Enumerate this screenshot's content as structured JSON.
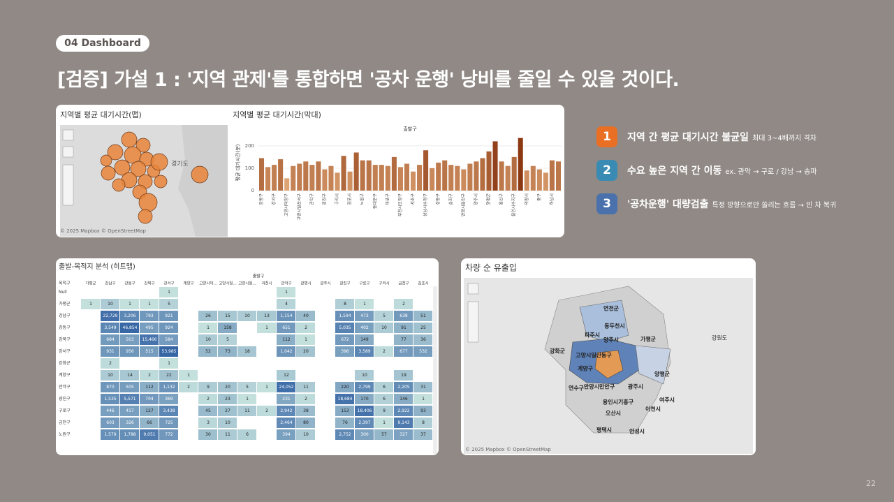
{
  "header": {
    "tag": "04 Dashboard",
    "title": "[검증] 가설 1 : '지역 관제'를 통합하면 '공차 운행' 낭비를 줄일 수 있을 것이다."
  },
  "map1": {
    "title": "지역별 평균 대기시간(맵)",
    "label": "경기도",
    "credit": "© 2025 Mapbox © OpenStreetMap"
  },
  "chart_data": {
    "type": "bar",
    "title": "지역별 평균 대기시간(막대)",
    "x_label": "출발구",
    "y_label": "평균 대기시간(분)",
    "categories": [
      "강동구",
      null,
      "강서구",
      null,
      "고양시덕양구",
      null,
      "고양시일산서구",
      null,
      "관악구",
      null,
      "광진구",
      null,
      "구리시",
      null,
      "김포시",
      null,
      "노원구",
      null,
      "동대문구",
      null,
      "마포구",
      null,
      "부천시오정구",
      null,
      "서초구",
      null,
      "성남시수정구",
      null,
      "성동구",
      null,
      "송파구",
      null,
      "안양시동안구",
      null,
      "양주시",
      null,
      "양평군",
      null,
      "용산구",
      null,
      "용인시수지구",
      null,
      "의왕시",
      null,
      "중구",
      null,
      "하남시",
      null
    ],
    "values": [
      145,
      105,
      115,
      140,
      55,
      110,
      120,
      130,
      115,
      130,
      95,
      110,
      80,
      155,
      85,
      170,
      135,
      135,
      115,
      115,
      110,
      150,
      105,
      120,
      85,
      115,
      180,
      100,
      125,
      135,
      115,
      110,
      95,
      120,
      130,
      145,
      175,
      220,
      130,
      110,
      150,
      235,
      90,
      110,
      95,
      80,
      135,
      130
    ],
    "colorscale": [
      "#f6c48f",
      "#8a3510"
    ],
    "ylim": [
      0,
      240
    ],
    "yticks": [
      0,
      100,
      200
    ]
  },
  "heatmap": {
    "title": "출발-목적지 분석 (히트맵)",
    "col_title": "출발구",
    "row_title": "목적구",
    "columns": [
      "가평군",
      "강남구",
      "강동구",
      "강북구",
      "강서구",
      "계양구",
      "고양시덕...",
      "고양시일...",
      "고양시일...",
      "과천시",
      "관악구",
      "광명시",
      "광주시",
      "광진구",
      "구로구",
      "구리시",
      "금천구",
      "김포시"
    ],
    "rows": [
      {
        "name": "Null",
        "cells": [
          null,
          null,
          null,
          null,
          "1",
          null,
          null,
          null,
          null,
          null,
          "1",
          null,
          null,
          null,
          null,
          null,
          null,
          null
        ]
      },
      {
        "name": "가평군",
        "cells": [
          "1",
          "10",
          "1",
          "1",
          "5",
          null,
          null,
          null,
          null,
          null,
          "4",
          null,
          null,
          "8",
          "1",
          null,
          "2",
          null
        ]
      },
      {
        "name": "강남구",
        "cells": [
          null,
          "22,729",
          "3,206",
          "793",
          "921",
          null,
          "26",
          "15",
          "10",
          "13",
          "1,154",
          "40",
          null,
          "1,594",
          "473",
          "5",
          "638",
          "51"
        ]
      },
      {
        "name": "강동구",
        "cells": [
          null,
          "3,549",
          "46,854",
          "495",
          "924",
          null,
          "1",
          "158",
          null,
          "1",
          "651",
          "2",
          null,
          "5,035",
          "402",
          "10",
          "91",
          "25"
        ]
      },
      {
        "name": "강북구",
        "cells": [
          null,
          "684",
          "503",
          "15,466",
          "584",
          null,
          "10",
          "5",
          null,
          null,
          "112",
          "1",
          null,
          "672",
          "149",
          null,
          "77",
          "36"
        ]
      },
      {
        "name": "강서구",
        "cells": [
          null,
          "931",
          "956",
          "515",
          "53,985",
          null,
          "52",
          "73",
          "18",
          null,
          "1,042",
          "20",
          null,
          "396",
          "3,589",
          "2",
          "677",
          "532"
        ]
      },
      {
        "name": "강화군",
        "cells": [
          null,
          "2",
          null,
          null,
          "1",
          null,
          null,
          null,
          null,
          null,
          null,
          null,
          null,
          null,
          null,
          null,
          null,
          null
        ]
      },
      {
        "name": "계양구",
        "cells": [
          null,
          "10",
          "14",
          "2",
          "22",
          "1",
          null,
          null,
          null,
          null,
          "12",
          null,
          null,
          null,
          "10",
          null,
          "19",
          null
        ]
      },
      {
        "name": "관악구",
        "cells": [
          null,
          "870",
          "505",
          "112",
          "1,132",
          "2",
          "9",
          "20",
          "5",
          "1",
          "24,052",
          "11",
          null,
          "220",
          "2,799",
          "6",
          "2,205",
          "31"
        ]
      },
      {
        "name": "광진구",
        "cells": [
          null,
          "1,535",
          "5,571",
          "704",
          "369",
          null,
          "2",
          "23",
          "1",
          null,
          "231",
          "2",
          null,
          "18,684",
          "170",
          "6",
          "146",
          "1"
        ]
      },
      {
        "name": "구로구",
        "cells": [
          null,
          "446",
          "417",
          "127",
          "3,438",
          null,
          "45",
          "27",
          "11",
          "2",
          "2,942",
          "38",
          null,
          "153",
          "18,406",
          "9",
          "2,922",
          "93"
        ]
      },
      {
        "name": "금천구",
        "cells": [
          null,
          "603",
          "326",
          "66",
          "725",
          null,
          "3",
          "10",
          null,
          null,
          "2,464",
          "80",
          null,
          "76",
          "2,397",
          "1",
          "9,143",
          "8"
        ]
      },
      {
        "name": "노원구",
        "cells": [
          null,
          "1,579",
          "1,788",
          "9,051",
          "772",
          null,
          "30",
          "11",
          "6",
          null,
          "394",
          "10",
          null,
          "2,752",
          "300",
          "57",
          "327",
          "37"
        ]
      }
    ]
  },
  "map2": {
    "title": "차량 순 유출입",
    "labels": [
      "연천군",
      "동두천시",
      "파주시",
      "양주시",
      "가평군",
      "강화군",
      "고양시일산동구",
      "계양구",
      "연수구",
      "안양시만안구",
      "광주시",
      "양평군",
      "용인시기흥구",
      "여주시",
      "오산시",
      "이천시",
      "평택시",
      "안성시",
      "강원도"
    ],
    "credit": "© 2025 Mapbox © OpenStreetMap"
  },
  "insights": [
    {
      "num": "1",
      "title": "지역 간 평균 대기시간 불균일",
      "note": "최대 3~4배까지 격차"
    },
    {
      "num": "2",
      "title": "수요 높은 지역 간 이동",
      "note": "ex. 관악 → 구로 / 강남 → 송파"
    },
    {
      "num": "3",
      "title": "'공차운행' 대량검출",
      "note": "특정 방향으로만 쏠리는 흐름 → 빈 차 복귀"
    }
  ],
  "page": "22"
}
